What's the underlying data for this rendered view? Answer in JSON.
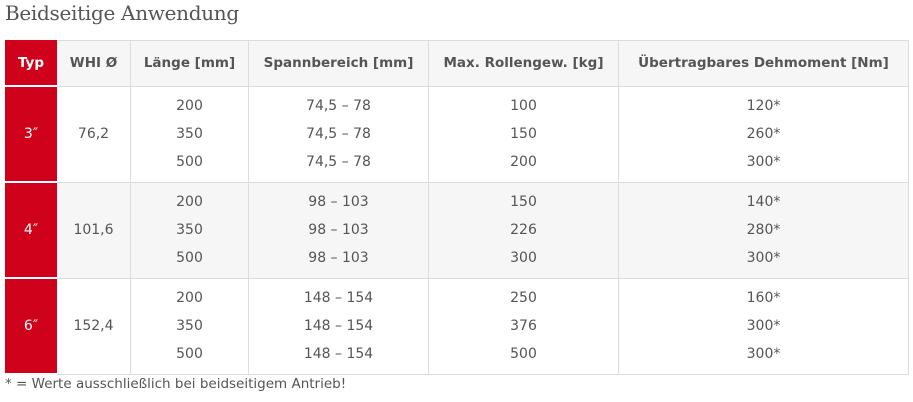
{
  "title": "Beidseitige Anwendung",
  "columns": [
    "Typ",
    "WHI Ø",
    "Länge [mm]",
    "Spannbereich [mm]",
    "Max. Rollengew. [kg]",
    "Übertragbares Dehmoment [Nm]"
  ],
  "rows": [
    {
      "typ": "3″",
      "whi": "76,2",
      "laenge": [
        "200",
        "350",
        "500"
      ],
      "spann": [
        "74,5 – 78",
        "74,5 – 78",
        "74,5 – 78"
      ],
      "gew": [
        "100",
        "150",
        "200"
      ],
      "moment": [
        "120*",
        "260*",
        "300*"
      ]
    },
    {
      "typ": "4″",
      "whi": "101,6",
      "laenge": [
        "200",
        "350",
        "500"
      ],
      "spann": [
        "98 – 103",
        "98 – 103",
        "98 – 103"
      ],
      "gew": [
        "150",
        "226",
        "300"
      ],
      "moment": [
        "140*",
        "280*",
        "300*"
      ]
    },
    {
      "typ": "6″",
      "whi": "152,4",
      "laenge": [
        "200",
        "350",
        "500"
      ],
      "spann": [
        "148 – 154",
        "148 – 154",
        "148 – 154"
      ],
      "gew": [
        "250",
        "376",
        "500"
      ],
      "moment": [
        "160*",
        "300*",
        "300*"
      ]
    }
  ],
  "footnote": "* = Werte ausschließlich bei beidseitigem Antrieb!",
  "colors": {
    "accent": "#d0021b",
    "header_bg": "#f6f6f6",
    "text": "#555555"
  }
}
